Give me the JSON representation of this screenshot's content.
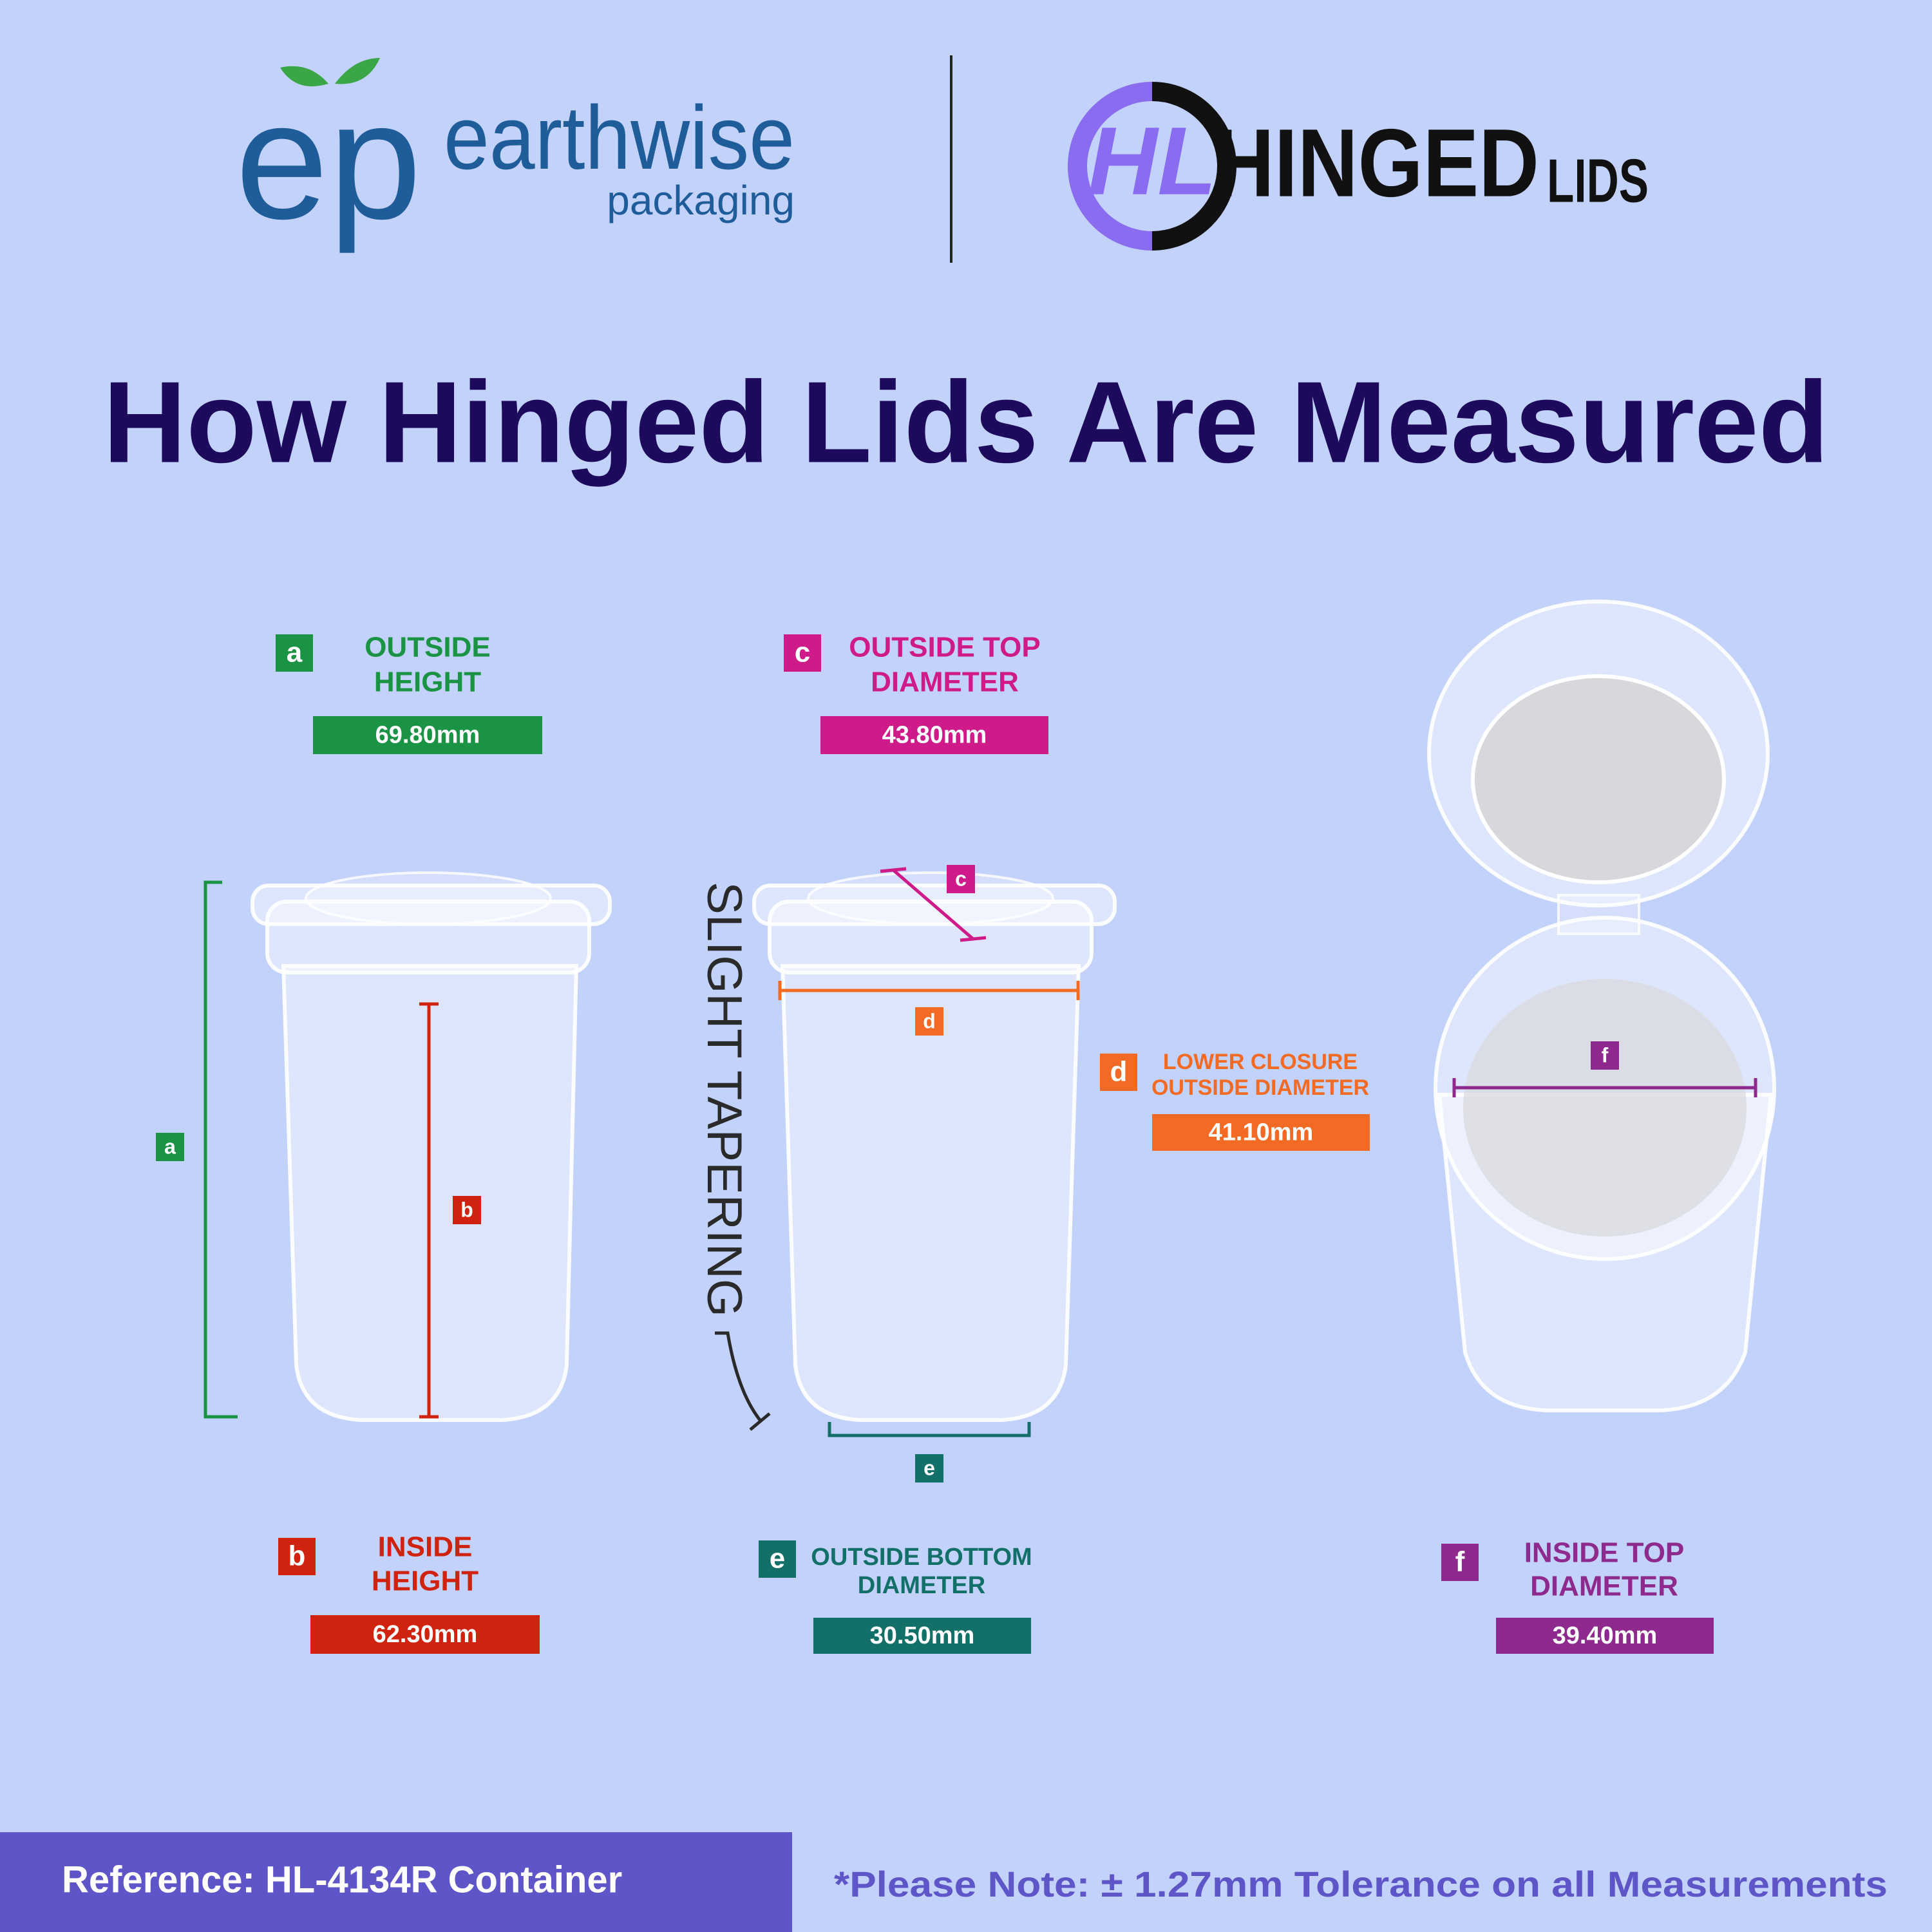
{
  "header": {
    "earthwise_logo": {
      "mark": "ep",
      "name": "earthwise",
      "tagline": "packaging"
    },
    "hinged_logo": {
      "mark": "HL",
      "name": "HINGED",
      "suffix": "LIDS"
    }
  },
  "title": "How Hinged Lids Are Measured",
  "measurements": [
    {
      "letter": "a",
      "label": [
        "OUTSIDE",
        "HEIGHT"
      ],
      "value": "69.80mm",
      "color": "#1a9444"
    },
    {
      "letter": "b",
      "label": [
        "INSIDE",
        "HEIGHT"
      ],
      "value": "62.30mm",
      "color": "#d0230f"
    },
    {
      "letter": "c",
      "label": [
        "OUTSIDE TOP",
        "DIAMETER"
      ],
      "value": "43.80mm",
      "color": "#cf1a8a"
    },
    {
      "letter": "d",
      "label": [
        "LOWER CLOSURE",
        "OUTSIDE DIAMETER"
      ],
      "value": "41.10mm",
      "color": "#f26a24"
    },
    {
      "letter": "e",
      "label": [
        "OUTSIDE BOTTOM",
        "DIAMETER"
      ],
      "value": "30.50mm",
      "color": "#137068"
    },
    {
      "letter": "f",
      "label": [
        "INSIDE TOP",
        "DIAMETER"
      ],
      "value": "39.40mm",
      "color": "#8e2a8e"
    }
  ],
  "annotation": "SLIGHT TAPERING",
  "footer": {
    "reference": "Reference: HL-4134R Container",
    "note": "*Please Note: ± 1.27mm Tolerance on all Measurements"
  }
}
